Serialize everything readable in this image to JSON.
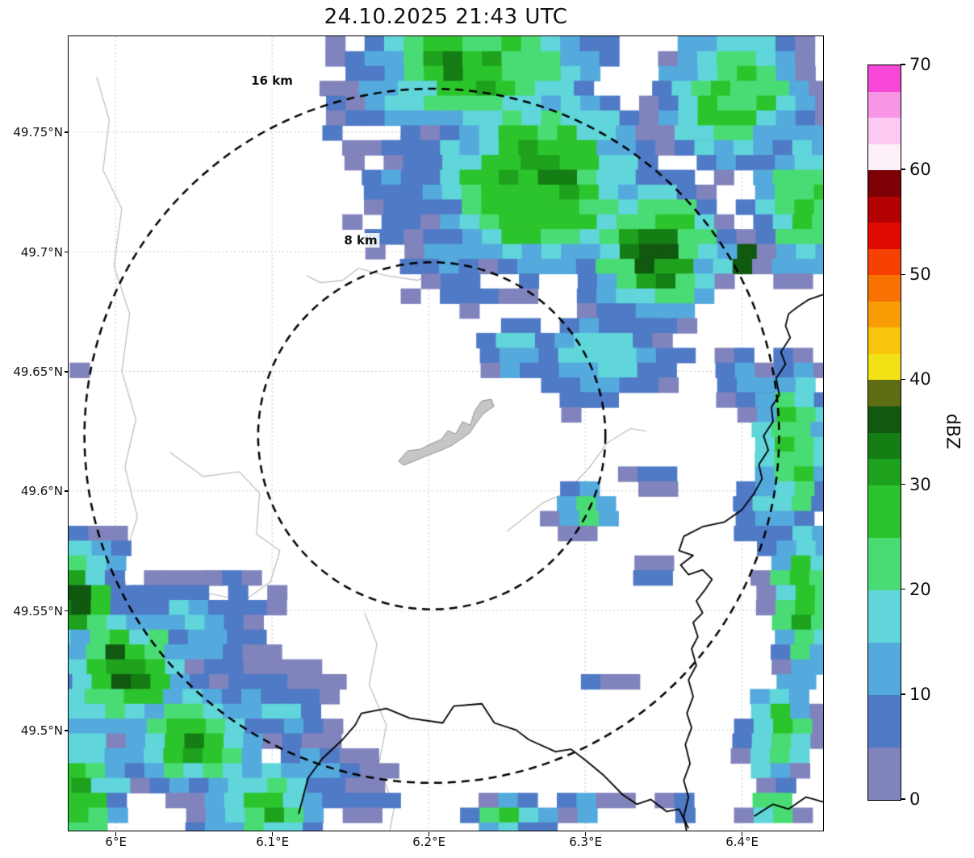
{
  "title": "24.10.2025 21:43 UTC",
  "colorbar": {
    "label": "dBZ",
    "min": 0,
    "max": 70,
    "ticks": [
      0,
      10,
      20,
      30,
      40,
      50,
      60,
      70
    ],
    "segments": [
      {
        "from": 0,
        "to": 5,
        "color": "#8183bc"
      },
      {
        "from": 5,
        "to": 10,
        "color": "#4f7ac6"
      },
      {
        "from": 10,
        "to": 15,
        "color": "#54aadd"
      },
      {
        "from": 15,
        "to": 20,
        "color": "#60d5da"
      },
      {
        "from": 20,
        "to": 25,
        "color": "#4adc74"
      },
      {
        "from": 25,
        "to": 30,
        "color": "#2cc42c"
      },
      {
        "from": 30,
        "to": 32.5,
        "color": "#1ea21e"
      },
      {
        "from": 32.5,
        "to": 35,
        "color": "#147d14"
      },
      {
        "from": 35,
        "to": 37.5,
        "color": "#115811"
      },
      {
        "from": 37.5,
        "to": 40,
        "color": "#5f6d15"
      },
      {
        "from": 40,
        "to": 42.5,
        "color": "#f2e215"
      },
      {
        "from": 42.5,
        "to": 45,
        "color": "#f8c50b"
      },
      {
        "from": 45,
        "to": 47.5,
        "color": "#f89d06"
      },
      {
        "from": 47.5,
        "to": 50,
        "color": "#f77103"
      },
      {
        "from": 50,
        "to": 52.5,
        "color": "#f74103"
      },
      {
        "from": 52.5,
        "to": 55,
        "color": "#e00a02"
      },
      {
        "from": 55,
        "to": 57.5,
        "color": "#b30002"
      },
      {
        "from": 57.5,
        "to": 60,
        "color": "#7d0005"
      },
      {
        "from": 60,
        "to": 62.5,
        "color": "#fcf0fa"
      },
      {
        "from": 62.5,
        "to": 65,
        "color": "#fbc9f1"
      },
      {
        "from": 65,
        "to": 67.5,
        "color": "#f995e5"
      },
      {
        "from": 67.5,
        "to": 70,
        "color": "#f747d6"
      }
    ]
  },
  "map": {
    "extent": {
      "lon_min": 5.97,
      "lon_max": 6.452,
      "lat_min": 49.458,
      "lat_max": 49.79
    },
    "x_ticks": [
      {
        "value": 6.0,
        "label": "6°E"
      },
      {
        "value": 6.1,
        "label": "6.1°E"
      },
      {
        "value": 6.2,
        "label": "6.2°E"
      },
      {
        "value": 6.3,
        "label": "6.3°E"
      },
      {
        "value": 6.4,
        "label": "6.4°E"
      }
    ],
    "y_ticks": [
      {
        "value": 49.75,
        "label": "49.75°N"
      },
      {
        "value": 49.7,
        "label": "49.7°N"
      },
      {
        "value": 49.65,
        "label": "49.65°N"
      },
      {
        "value": 49.6,
        "label": "49.6°N"
      },
      {
        "value": 49.55,
        "label": "49.55°N"
      },
      {
        "value": 49.5,
        "label": "49.5°N"
      }
    ],
    "radar_site": {
      "lon": 6.202,
      "lat": 49.623
    },
    "rings": [
      {
        "label": "8 km",
        "radius_km": 8
      },
      {
        "label": "16 km",
        "radius_km": 16
      }
    ],
    "airport_outline": [
      [
        6.1808,
        49.6124
      ],
      [
        6.1865,
        49.6167
      ],
      [
        6.1948,
        49.6174
      ],
      [
        6.202,
        49.6198
      ],
      [
        6.2081,
        49.6215
      ],
      [
        6.2123,
        49.6252
      ],
      [
        6.2174,
        49.6238
      ],
      [
        6.2216,
        49.6289
      ],
      [
        6.2267,
        49.6275
      ],
      [
        6.2293,
        49.6333
      ],
      [
        6.2339,
        49.6376
      ],
      [
        6.2401,
        49.6383
      ],
      [
        6.2417,
        49.6353
      ],
      [
        6.235,
        49.6323
      ],
      [
        6.2303,
        49.6282
      ],
      [
        6.2262,
        49.6242
      ],
      [
        6.2205,
        49.6215
      ],
      [
        6.2143,
        49.6188
      ],
      [
        6.2071,
        49.6167
      ],
      [
        6.1989,
        49.6147
      ],
      [
        6.1906,
        49.6124
      ],
      [
        6.1839,
        49.6107
      ]
    ],
    "borders": [
      [
        [
          6.117,
          49.465
        ],
        [
          6.123,
          49.48
        ],
        [
          6.132,
          49.488
        ],
        [
          6.145,
          49.496
        ],
        [
          6.153,
          49.502
        ],
        [
          6.157,
          49.507
        ],
        [
          6.173,
          49.509
        ],
        [
          6.188,
          49.505
        ],
        [
          6.209,
          49.503
        ],
        [
          6.216,
          49.51
        ],
        [
          6.234,
          49.511
        ],
        [
          6.242,
          49.503
        ],
        [
          6.256,
          49.5
        ],
        [
          6.264,
          49.496
        ],
        [
          6.281,
          49.491
        ],
        [
          6.291,
          49.492
        ],
        [
          6.301,
          49.487
        ],
        [
          6.312,
          49.481
        ],
        [
          6.324,
          49.473
        ],
        [
          6.333,
          49.469
        ],
        [
          6.342,
          49.471
        ],
        [
          6.352,
          49.466
        ],
        [
          6.36,
          49.467
        ],
        [
          6.366,
          49.459
        ]
      ],
      [
        [
          6.452,
          49.682
        ],
        [
          6.443,
          49.68
        ],
        [
          6.436,
          49.677
        ],
        [
          6.43,
          49.674
        ],
        [
          6.428,
          49.669
        ],
        [
          6.431,
          49.664
        ],
        [
          6.425,
          49.658
        ],
        [
          6.428,
          49.653
        ],
        [
          6.422,
          49.647
        ],
        [
          6.424,
          49.64
        ],
        [
          6.419,
          49.635
        ],
        [
          6.42,
          49.629
        ],
        [
          6.414,
          49.623
        ],
        [
          6.417,
          49.617
        ],
        [
          6.411,
          49.611
        ],
        [
          6.413,
          49.605
        ],
        [
          6.408,
          49.599
        ],
        [
          6.4,
          49.592
        ],
        [
          6.389,
          49.587
        ],
        [
          6.375,
          49.585
        ],
        [
          6.363,
          49.581
        ],
        [
          6.36,
          49.575
        ],
        [
          6.369,
          49.573
        ],
        [
          6.361,
          49.569
        ],
        [
          6.366,
          49.565
        ],
        [
          6.375,
          49.567
        ],
        [
          6.381,
          49.563
        ],
        [
          6.377,
          49.559
        ],
        [
          6.371,
          49.554
        ],
        [
          6.375,
          49.549
        ],
        [
          6.369,
          49.545
        ],
        [
          6.372,
          49.539
        ],
        [
          6.368,
          49.534
        ],
        [
          6.371,
          49.527
        ],
        [
          6.366,
          49.521
        ],
        [
          6.369,
          49.514
        ],
        [
          6.365,
          49.507
        ],
        [
          6.368,
          49.501
        ],
        [
          6.364,
          49.494
        ],
        [
          6.367,
          49.486
        ],
        [
          6.363,
          49.479
        ],
        [
          6.366,
          49.472
        ],
        [
          6.363,
          49.464
        ],
        [
          6.365,
          49.457
        ]
      ],
      [
        [
          6.408,
          49.464
        ],
        [
          6.42,
          49.469
        ],
        [
          6.43,
          49.467
        ],
        [
          6.441,
          49.472
        ],
        [
          6.452,
          49.47
        ]
      ]
    ],
    "waterways": [
      [
        [
          5.988,
          49.773
        ],
        [
          5.996,
          49.755
        ],
        [
          5.992,
          49.734
        ],
        [
          6.004,
          49.718
        ],
        [
          5.999,
          49.694
        ],
        [
          6.009,
          49.674
        ],
        [
          6.004,
          49.65
        ],
        [
          6.013,
          49.63
        ],
        [
          6.006,
          49.61
        ],
        [
          6.014,
          49.589
        ],
        [
          6.004,
          49.569
        ],
        [
          6.01,
          49.549
        ],
        [
          6.0,
          49.529
        ]
      ],
      [
        [
          6.187,
          49.789
        ],
        [
          6.192,
          49.767
        ],
        [
          6.182,
          49.748
        ],
        [
          6.193,
          49.729
        ],
        [
          6.205,
          49.72
        ],
        [
          6.199,
          49.7
        ],
        [
          6.209,
          49.693
        ],
        [
          6.193,
          49.688
        ],
        [
          6.173,
          49.69
        ],
        [
          6.155,
          49.693
        ],
        [
          6.145,
          49.688
        ],
        [
          6.131,
          49.687
        ],
        [
          6.122,
          49.69
        ]
      ],
      [
        [
          6.25,
          49.583
        ],
        [
          6.273,
          49.595
        ],
        [
          6.287,
          49.599
        ],
        [
          6.303,
          49.61
        ],
        [
          6.314,
          49.62
        ],
        [
          6.329,
          49.626
        ],
        [
          6.339,
          49.625
        ]
      ],
      [
        [
          6.159,
          49.549
        ],
        [
          6.167,
          49.536
        ],
        [
          6.162,
          49.519
        ],
        [
          6.173,
          49.502
        ],
        [
          6.168,
          49.485
        ],
        [
          6.178,
          49.468
        ],
        [
          6.175,
          49.457
        ]
      ],
      [
        [
          6.035,
          49.616
        ],
        [
          6.056,
          49.606
        ],
        [
          6.079,
          49.608
        ],
        [
          6.092,
          49.599
        ],
        [
          6.09,
          49.582
        ],
        [
          6.105,
          49.575
        ],
        [
          6.099,
          49.562
        ],
        [
          6.082,
          49.554
        ],
        [
          6.061,
          49.557
        ],
        [
          6.046,
          49.548
        ]
      ]
    ]
  },
  "chart_data": {
    "type": "heatmap",
    "title": "24.10.2025 21:43 UTC",
    "xlabel": "",
    "ylabel": "",
    "xlim": [
      5.97,
      6.452
    ],
    "ylim": [
      49.458,
      49.79
    ],
    "x_tick_labels": [
      "6°E",
      "6.1°E",
      "6.2°E",
      "6.3°E",
      "6.4°E"
    ],
    "y_tick_labels": [
      "49.5°N",
      "49.55°N",
      "49.6°N",
      "49.65°N",
      "49.7°N",
      "49.75°N"
    ],
    "value_units": "dBZ",
    "value_range": [
      0,
      70
    ],
    "colorbar_ticks": [
      0,
      10,
      20,
      30,
      40,
      50,
      60,
      70
    ],
    "range_rings_km": [
      8,
      16
    ],
    "radar_site": {
      "lon": 6.202,
      "lat": 49.623
    },
    "echo_blobs": {
      "format": [
        "lon",
        "lat",
        "rx_deg",
        "ry_deg",
        "peak_dbz"
      ],
      "points": [
        [
          6.27,
          49.73,
          0.085,
          0.048,
          33
        ],
        [
          6.345,
          49.7,
          0.055,
          0.038,
          34
        ],
        [
          6.23,
          49.778,
          0.095,
          0.036,
          30
        ],
        [
          6.395,
          49.765,
          0.06,
          0.04,
          27
        ],
        [
          6.44,
          49.72,
          0.045,
          0.04,
          26
        ],
        [
          6.31,
          49.655,
          0.05,
          0.022,
          20
        ],
        [
          6.255,
          49.66,
          0.025,
          0.015,
          18
        ],
        [
          6.22,
          49.7,
          0.045,
          0.028,
          12
        ],
        [
          6.185,
          49.735,
          0.04,
          0.025,
          9
        ],
        [
          6.155,
          49.757,
          0.03,
          0.015,
          7
        ],
        [
          6.17,
          49.786,
          0.025,
          0.013,
          10
        ],
        [
          6.165,
          49.705,
          0.02,
          0.012,
          8
        ],
        [
          6.398,
          49.697,
          0.014,
          0.008,
          44
        ],
        [
          6.228,
          49.772,
          0.011,
          0.006,
          42
        ],
        [
          6.432,
          49.62,
          0.03,
          0.045,
          30
        ],
        [
          6.44,
          49.555,
          0.028,
          0.045,
          29
        ],
        [
          6.425,
          49.5,
          0.028,
          0.03,
          25
        ],
        [
          6.4,
          49.645,
          0.02,
          0.015,
          14
        ],
        [
          6.41,
          49.59,
          0.022,
          0.02,
          15
        ],
        [
          5.968,
          49.558,
          0.045,
          0.03,
          36
        ],
        [
          6.005,
          49.525,
          0.055,
          0.032,
          33
        ],
        [
          6.05,
          49.495,
          0.055,
          0.028,
          29
        ],
        [
          6.095,
          49.468,
          0.05,
          0.025,
          27
        ],
        [
          6.05,
          49.545,
          0.06,
          0.025,
          14
        ],
        [
          6.1,
          49.51,
          0.05,
          0.022,
          13
        ],
        [
          6.13,
          49.48,
          0.04,
          0.02,
          11
        ],
        [
          5.975,
          49.475,
          0.04,
          0.035,
          30
        ],
        [
          5.972,
          49.552,
          0.012,
          0.008,
          39
        ],
        [
          6.3,
          49.592,
          0.026,
          0.012,
          22
        ],
        [
          6.332,
          49.606,
          0.012,
          0.007,
          8
        ],
        [
          6.29,
          49.635,
          0.014,
          0.007,
          7
        ],
        [
          6.34,
          49.565,
          0.013,
          0.005,
          8
        ],
        [
          6.307,
          49.521,
          0.012,
          0.005,
          8
        ],
        [
          6.253,
          49.464,
          0.035,
          0.01,
          24
        ],
        [
          6.3,
          49.468,
          0.018,
          0.008,
          12
        ],
        [
          6.36,
          49.467,
          0.016,
          0.006,
          13
        ],
        [
          6.42,
          49.468,
          0.022,
          0.01,
          26
        ],
        [
          5.973,
          49.651,
          0.008,
          0.006,
          6
        ]
      ]
    }
  }
}
